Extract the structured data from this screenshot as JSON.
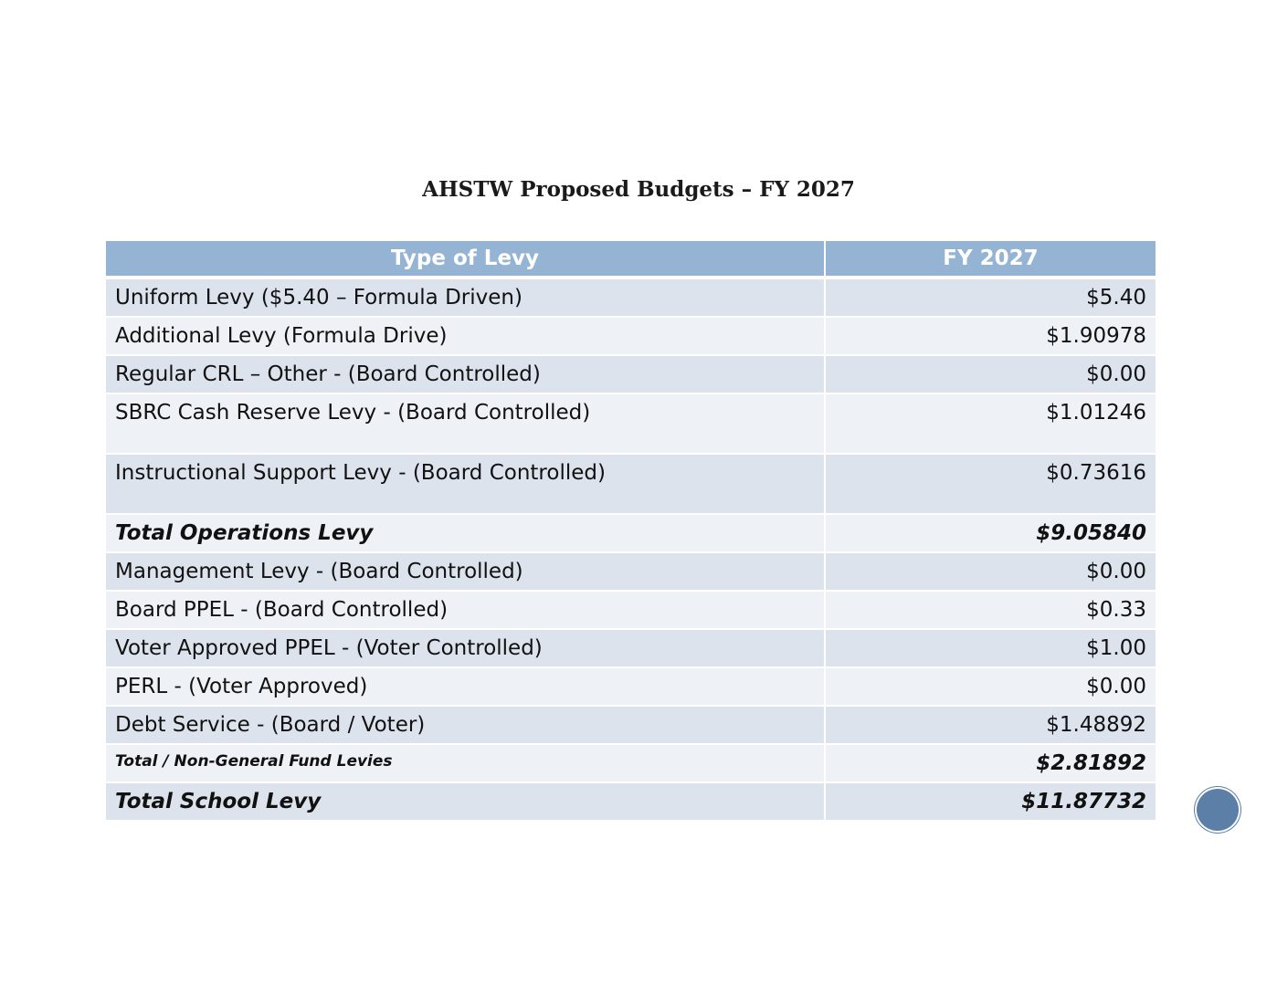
{
  "title": "AHSTW Proposed Budgets – FY 2027",
  "table": {
    "header": [
      "Type of Levy",
      "FY 2027"
    ],
    "rows": [
      [
        "Uniform Levy ($5.40 – Formula Driven)",
        "$5.40"
      ],
      [
        "Additional Levy (Formula Drive)",
        "$1.90978"
      ],
      [
        "Regular CRL – Other - (Board Controlled)",
        "$0.00"
      ],
      [
        "SBRC Cash Reserve Levy - (Board Controlled)",
        "$1.01246"
      ],
      [
        "Instructional Support Levy - (Board Controlled)",
        "$0.73616"
      ],
      [
        "Total Operations Levy",
        "$9.05840"
      ],
      [
        "Management Levy - (Board Controlled)",
        "$0.00"
      ],
      [
        "Board PPEL - (Board Controlled)",
        "$0.33"
      ],
      [
        "Voter Approved PPEL - (Voter Controlled)",
        "$1.00"
      ],
      [
        "PERL - (Voter Approved)",
        "$0.00"
      ],
      [
        "Debt Service - (Board / Voter)",
        "$1.48892"
      ],
      [
        "Total / Non-General Fund Levies",
        "$2.81892"
      ],
      [
        "Total School Levy",
        "$11.87732"
      ]
    ]
  }
}
